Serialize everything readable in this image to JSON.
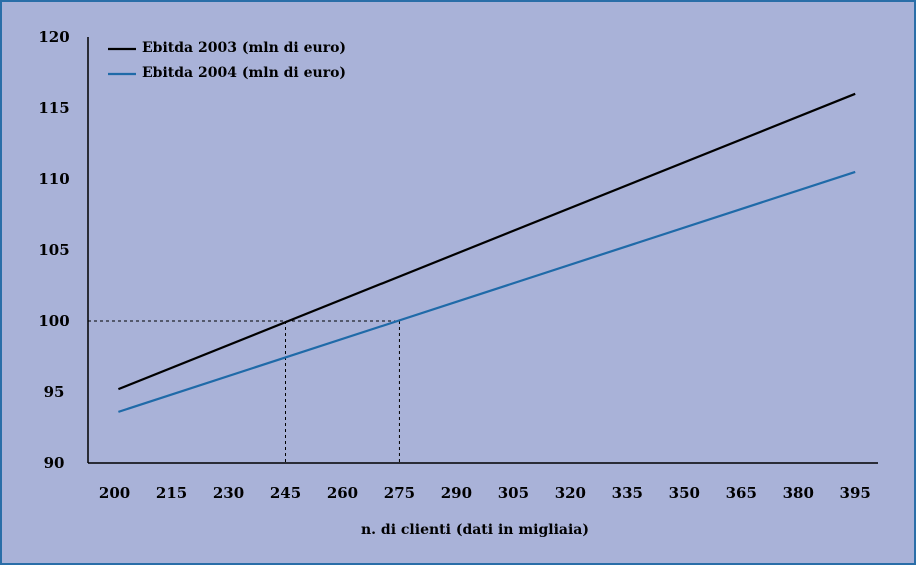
{
  "chart_data": {
    "type": "line",
    "title": "",
    "xlabel": "n. di clienti (dati in migliaia)",
    "ylabel": "",
    "x_ticks": [
      200,
      215,
      230,
      245,
      260,
      275,
      290,
      305,
      320,
      335,
      350,
      365,
      380,
      395
    ],
    "y_ticks": [
      90,
      95,
      100,
      105,
      110,
      115,
      120
    ],
    "xlim": [
      193,
      401
    ],
    "ylim": [
      90,
      120
    ],
    "grid": false,
    "legend_position": "top-left",
    "series": [
      {
        "name": "Ebitda 2003 (mln di euro)",
        "color": "#000000",
        "x": [
          201,
          395
        ],
        "y": [
          95.2,
          116.0
        ]
      },
      {
        "name": "Ebitda 2004 (mln di euro)",
        "color": "#1f6aa8",
        "x": [
          201,
          395
        ],
        "y": [
          93.6,
          110.5
        ]
      }
    ],
    "reference_lines": [
      {
        "x": 245,
        "y": 100
      },
      {
        "x": 275,
        "y": 100
      }
    ]
  }
}
